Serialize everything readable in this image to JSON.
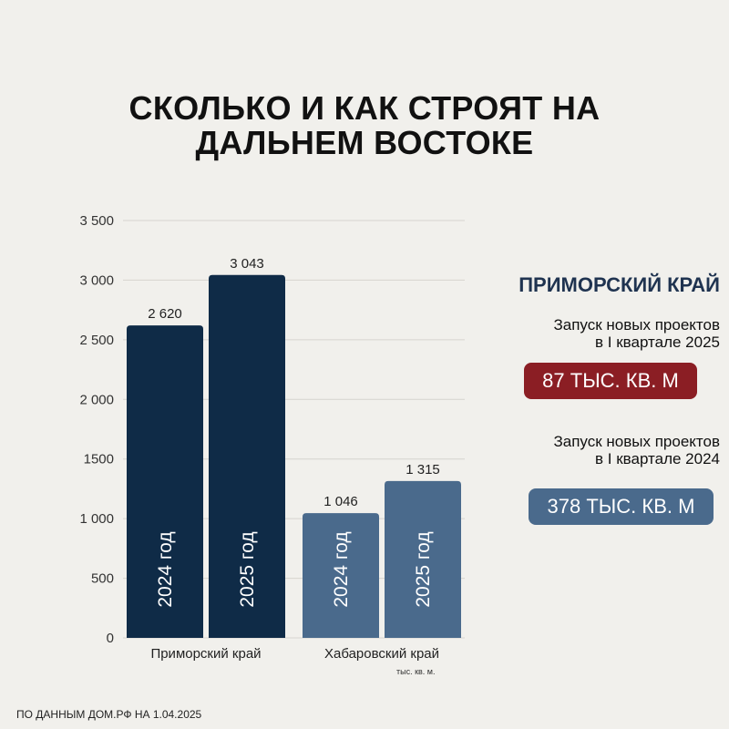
{
  "title": {
    "line1": "СКОЛЬКО И КАК СТРОЯТ НА",
    "line2": "ДАЛЬНЕМ ВОСТОКЕ"
  },
  "chart_data": {
    "type": "bar",
    "categories": [
      "Приморский край",
      "Хабаровский край"
    ],
    "series": [
      {
        "name": "2024 год",
        "values": [
          2620,
          1046
        ]
      },
      {
        "name": "2025 год",
        "values": [
          3043,
          1315
        ]
      }
    ],
    "value_labels": [
      [
        "2 620",
        "3 043"
      ],
      [
        "1 046",
        "1 315"
      ]
    ],
    "bar_labels": [
      "2024 год",
      "2025 год"
    ],
    "y_ticks": [
      "0",
      "500",
      "1 000",
      "1500",
      "2 000",
      "2 500",
      "3 000",
      "3 500"
    ],
    "y_tick_values": [
      0,
      500,
      1000,
      1500,
      2000,
      2500,
      3000,
      3500
    ],
    "ylim": [
      0,
      3500
    ],
    "unit_label": "тыс. кв. м.",
    "grid": true,
    "colors": {
      "primorsky": "#0f2b47",
      "khabarovsk": "#4a6a8c",
      "grid": "#d6d4cf"
    }
  },
  "side_panel": {
    "title": "ПРИМОРСКИЙ КРАЙ",
    "block1": {
      "line1": "Запуск новых проектов",
      "line2": "в I квартале 2025",
      "value": "87 ТЫС. КВ. М",
      "color": "#8b1e24"
    },
    "block2": {
      "line1": "Запуск новых проектов",
      "line2": "в I квартале 2024",
      "value": "378 ТЫС. КВ. М",
      "color": "#4a6a8c"
    }
  },
  "source": "ПО ДАННЫМ ДОМ.РФ НА 1.04.2025"
}
